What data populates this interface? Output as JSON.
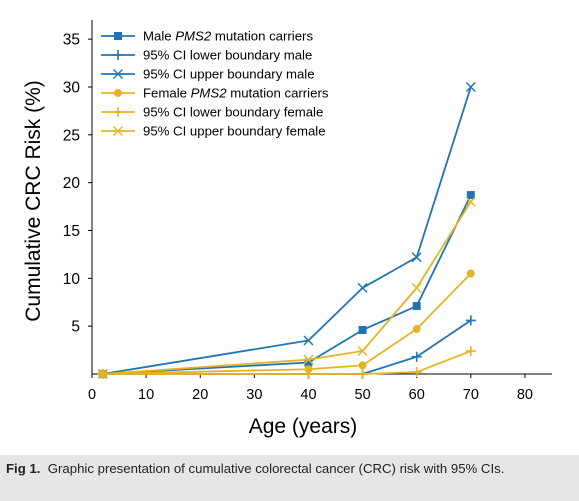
{
  "caption": {
    "label": "Fig 1.",
    "text": "Graphic presentation of cumulative colorectal cancer (CRC) risk with 95% CIs."
  },
  "colors": {
    "male": "#1f74b6",
    "female": "#e6b422",
    "axis": "#000000"
  },
  "chart_data": {
    "type": "line",
    "title": "",
    "xlabel": "Age (years)",
    "ylabel": "Cumulative CRC Risk (%)",
    "xlim": [
      0,
      85
    ],
    "ylim": [
      0,
      37
    ],
    "xticks": [
      0,
      10,
      20,
      30,
      40,
      50,
      60,
      70,
      80
    ],
    "yticks": [
      5,
      10,
      15,
      20,
      25,
      30,
      35
    ],
    "grid": false,
    "legend_position": "top-left",
    "series": [
      {
        "legend": [
          "Male ",
          "PMS2",
          " mutation carriers"
        ],
        "group": "male",
        "marker": "square",
        "x": [
          2,
          40,
          50,
          60,
          70
        ],
        "y": [
          0,
          1.2,
          4.6,
          7.1,
          18.7
        ]
      },
      {
        "legend": [
          "95% CI lower boundary male"
        ],
        "group": "male",
        "marker": "plus",
        "x": [
          2,
          40,
          50,
          60,
          70
        ],
        "y": [
          0,
          0,
          0,
          1.8,
          5.6
        ]
      },
      {
        "legend": [
          "95% CI upper boundary male"
        ],
        "group": "male",
        "marker": "x",
        "x": [
          2,
          40,
          50,
          60,
          70
        ],
        "y": [
          0,
          3.5,
          9.0,
          12.2,
          30.0
        ]
      },
      {
        "legend": [
          "Female ",
          "PMS2",
          " mutation carriers"
        ],
        "group": "female",
        "marker": "circle",
        "x": [
          2,
          40,
          50,
          60,
          70
        ],
        "y": [
          0,
          0.5,
          0.9,
          4.7,
          10.5
        ]
      },
      {
        "legend": [
          "95% CI lower boundary female"
        ],
        "group": "female",
        "marker": "plus",
        "x": [
          2,
          40,
          50,
          60,
          70
        ],
        "y": [
          0,
          0,
          0,
          0.2,
          2.4
        ]
      },
      {
        "legend": [
          "95% CI upper boundary female"
        ],
        "group": "female",
        "marker": "x",
        "x": [
          2,
          40,
          50,
          60,
          70
        ],
        "y": [
          0,
          1.5,
          2.4,
          9.0,
          18.0
        ]
      }
    ]
  }
}
